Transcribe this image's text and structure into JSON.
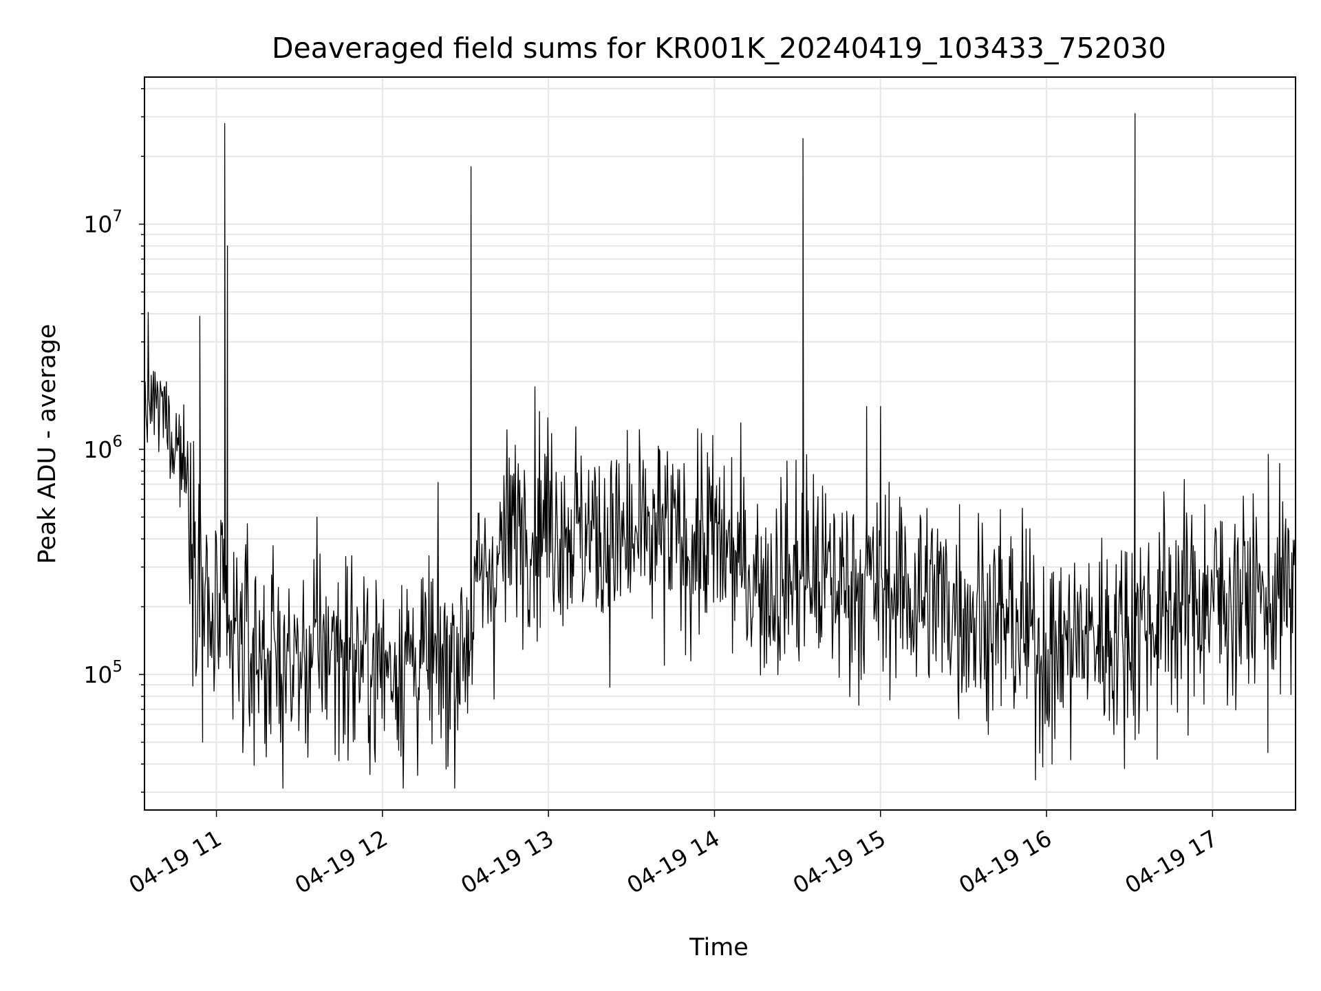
{
  "chart_data": {
    "type": "line",
    "title": "Deaveraged field sums for KR001K_20240419_103433_752030",
    "xlabel": "Time",
    "ylabel": "Peak ADU - average",
    "yscale": "log",
    "grid": true,
    "x_domain": [
      "2024-04-19 10:34",
      "2024-04-19 17:30"
    ],
    "ylim": [
      25000,
      45000000
    ],
    "x_ticks": [
      {
        "value": "2024-04-19 11:00",
        "label": "04-19 11"
      },
      {
        "value": "2024-04-19 12:00",
        "label": "04-19 12"
      },
      {
        "value": "2024-04-19 13:00",
        "label": "04-19 13"
      },
      {
        "value": "2024-04-19 14:00",
        "label": "04-19 14"
      },
      {
        "value": "2024-04-19 15:00",
        "label": "04-19 15"
      },
      {
        "value": "2024-04-19 16:00",
        "label": "04-19 16"
      },
      {
        "value": "2024-04-19 17:00",
        "label": "04-19 17"
      }
    ],
    "y_ticks": [
      {
        "value": 100000,
        "base": "10",
        "exp": "5"
      },
      {
        "value": 1000000,
        "base": "10",
        "exp": "6"
      },
      {
        "value": 10000000,
        "base": "10",
        "exp": "7"
      }
    ],
    "line_color": "#000000",
    "series": [
      {
        "x": [
          "2024-04-19 10:34",
          "2024-04-19 10:36",
          "2024-04-19 10:38",
          "2024-04-19 10:40",
          "2024-04-19 10:42",
          "2024-04-19 10:44",
          "2024-04-19 10:46",
          "2024-04-19 10:48",
          "2024-04-19 10:50",
          "2024-04-19 10:52",
          "2024-04-19 10:54",
          "2024-04-19 10:56",
          "2024-04-19 10:58",
          "2024-04-19 11:00",
          "2024-04-19 11:02",
          "2024-04-19 11:04",
          "2024-04-19 11:06",
          "2024-04-19 11:08",
          "2024-04-19 11:10",
          "2024-04-19 11:12",
          "2024-04-19 11:14",
          "2024-04-19 11:16",
          "2024-04-19 11:18",
          "2024-04-19 11:20",
          "2024-04-19 11:25",
          "2024-04-19 11:30",
          "2024-04-19 11:35",
          "2024-04-19 11:40",
          "2024-04-19 11:45",
          "2024-04-19 11:50",
          "2024-04-19 11:55",
          "2024-04-19 12:00",
          "2024-04-19 12:10",
          "2024-04-19 12:20",
          "2024-04-19 12:25",
          "2024-04-19 12:30",
          "2024-04-19 12:33",
          "2024-04-19 12:35",
          "2024-04-19 12:40",
          "2024-04-19 12:45",
          "2024-04-19 12:50",
          "2024-04-19 12:55",
          "2024-04-19 13:00",
          "2024-04-19 13:10",
          "2024-04-19 13:20",
          "2024-04-19 13:30",
          "2024-04-19 13:40",
          "2024-04-19 13:50",
          "2024-04-19 14:00",
          "2024-04-19 14:10",
          "2024-04-19 14:20",
          "2024-04-19 14:30",
          "2024-04-19 14:32",
          "2024-04-19 14:35",
          "2024-04-19 14:45",
          "2024-04-19 14:53",
          "2024-04-19 15:00",
          "2024-04-19 15:10",
          "2024-04-19 15:20",
          "2024-04-19 15:30",
          "2024-04-19 15:40",
          "2024-04-19 15:50",
          "2024-04-19 16:00",
          "2024-04-19 16:10",
          "2024-04-19 16:20",
          "2024-04-19 16:30",
          "2024-04-19 16:32",
          "2024-04-19 16:35",
          "2024-04-19 16:45",
          "2024-04-19 17:00",
          "2024-04-19 17:10",
          "2024-04-19 17:20",
          "2024-04-19 17:30"
        ],
        "y": [
          1500000,
          1700000,
          1400000,
          1600000,
          1300000,
          1200000,
          1100000,
          900000,
          700000,
          400000,
          300000,
          200000,
          150000,
          180000,
          170000,
          140000,
          130000,
          150000,
          140000,
          130000,
          120000,
          130000,
          120000,
          120000,
          110000,
          110000,
          120000,
          140000,
          130000,
          120000,
          110000,
          110000,
          120000,
          110000,
          120000,
          140000,
          200000,
          250000,
          300000,
          400000,
          500000,
          500000,
          500000,
          450000,
          400000,
          380000,
          400000,
          380000,
          400000,
          300000,
          250000,
          280000,
          300000,
          280000,
          250000,
          260000,
          250000,
          230000,
          220000,
          200000,
          180000,
          160000,
          130000,
          140000,
          150000,
          150000,
          160000,
          180000,
          200000,
          220000,
          220000,
          230000,
          230000
        ]
      }
    ],
    "spikes": [
      {
        "x": "2024-04-19 10:54",
        "y": 3900000
      },
      {
        "x": "2024-04-19 11:03",
        "y": 28000000
      },
      {
        "x": "2024-04-19 11:04",
        "y": 8000000
      },
      {
        "x": "2024-04-19 12:32",
        "y": 18000000
      },
      {
        "x": "2024-04-19 13:40",
        "y": 1000000
      },
      {
        "x": "2024-04-19 14:32",
        "y": 24000000
      },
      {
        "x": "2024-04-19 14:55",
        "y": 1550000
      },
      {
        "x": "2024-04-19 15:00",
        "y": 1550000
      },
      {
        "x": "2024-04-19 16:32",
        "y": 31000000
      }
    ],
    "dips": [
      {
        "x": "2024-04-19 10:55",
        "y": 50000
      },
      {
        "x": "2024-04-19 12:23",
        "y": 38000
      },
      {
        "x": "2024-04-19 15:56",
        "y": 34000
      },
      {
        "x": "2024-04-19 16:02",
        "y": 40000
      },
      {
        "x": "2024-04-19 16:40",
        "y": 42000
      },
      {
        "x": "2024-04-19 17:20",
        "y": 45000
      }
    ]
  }
}
